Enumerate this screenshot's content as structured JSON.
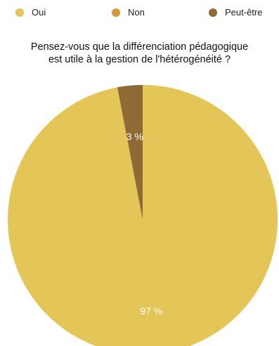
{
  "chart_data": {
    "type": "pie",
    "title": "Pensez-vous que la différenciation pédagogique est utile à la gestion de l'hétérogénéité  ?",
    "title_lines": [
      "Pensez-vous que la différenciation pédagogique",
      "est utile à la gestion de l'hétérogénéité  ?"
    ],
    "categories": [
      "Oui",
      "Non",
      "Peut-être"
    ],
    "values": [
      97,
      0,
      3
    ],
    "data_labels": [
      "97 %",
      "",
      "3 %"
    ],
    "colors": [
      "#E3C657",
      "#D19A3A",
      "#8E6A34"
    ],
    "legend_position": "top"
  }
}
